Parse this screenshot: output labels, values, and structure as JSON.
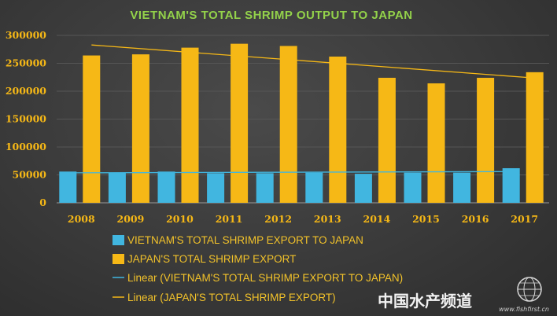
{
  "chart_data": {
    "type": "bar",
    "title": "VIETNAM'S TOTAL SHRIMP OUTPUT TO JAPAN",
    "categories": [
      "2008",
      "2009",
      "2010",
      "2011",
      "2012",
      "2013",
      "2014",
      "2015",
      "2016",
      "2017"
    ],
    "series": [
      {
        "name": "VIETNAM'S TOTAL SHRIMP EXPORT TO JAPAN",
        "color": "#41b6e0",
        "values": [
          56000,
          54000,
          56000,
          53000,
          53000,
          54000,
          52000,
          54000,
          54000,
          62000
        ]
      },
      {
        "name": "JAPAN'S TOTAL SHRIMP EXPORT",
        "color": "#f6b816",
        "values": [
          264000,
          266000,
          278000,
          285000,
          281000,
          262000,
          224000,
          214000,
          224000,
          234000
        ]
      }
    ],
    "trendlines": [
      {
        "name": "Linear (VIETNAM'S TOTAL SHRIMP EXPORT TO JAPAN)",
        "series": 0,
        "color": "#41b6e0"
      },
      {
        "name": "Linear (JAPAN'S TOTAL SHRIMP EXPORT)",
        "series": 1,
        "color": "#f6b816"
      }
    ],
    "yticks": [
      "300000",
      "250000",
      "200000",
      "150000",
      "100000",
      "50000",
      "0"
    ],
    "ylim": [
      0,
      300000
    ],
    "grid": true,
    "legend_position": "bottom",
    "title_color": "#93d24a",
    "tick_color": "#f6b816"
  },
  "watermark": {
    "main": "中国水产频道",
    "sub": "www.fishfirst.cn"
  }
}
